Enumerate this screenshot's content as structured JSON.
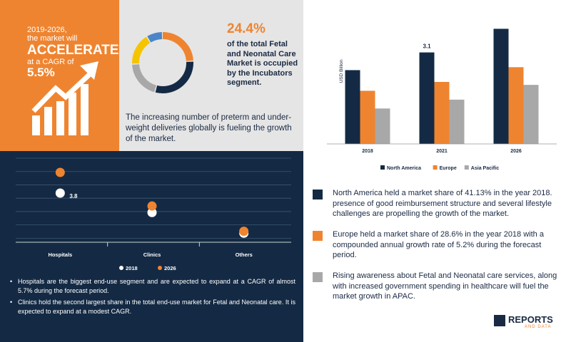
{
  "promo": {
    "years": "2019-2026,",
    "will": "the market will",
    "accelerate": "ACCELERATE",
    "cagr_prefix": "at a CAGR of",
    "cagr": "5.5%"
  },
  "donut": {
    "percent": "24.4%",
    "text": "of the total Fetal and Neonatal Care Market is occupied by the Incubators segment.",
    "segments": [
      {
        "value": 24.4,
        "color": "#ef8430"
      },
      {
        "value": 30,
        "color": "#142a44"
      },
      {
        "value": 20,
        "color": "#a8a8a8"
      },
      {
        "value": 17,
        "color": "#f5c400"
      },
      {
        "value": 8.6,
        "color": "#4a86c8"
      }
    ]
  },
  "growth_text": "The increasing number of preterm and under-weight deliveries globally is fueling the growth of the market.",
  "bullets": [
    "Hospitals are the biggest end-use segment and are expected to expand at a CAGR of almost 5.7% during the forecast period.",
    "Clinics hold the second largest share in the total end-use market for Fetal and Neonatal care. It is expected to expand at a modest CAGR."
  ],
  "regions": [
    {
      "color": "#142a44",
      "text": "North America held a market share of 41.13% in the year 2018. presence of good reimbursement structure and several lifestyle challenges are propelling the growth of the market."
    },
    {
      "color": "#ef8430",
      "text": "Europe held a market share of 28.6% in the year 2018 with a compounded annual growth rate of 5.2% during the forecast period."
    },
    {
      "color": "#a8a8a8",
      "text": "Rising awareness about Fetal and Neonatal care services, along with increased government spending in healthcare will fuel the market growth in APAC."
    }
  ],
  "logo": {
    "name": "REPORTS",
    "sub": "AND DATA"
  },
  "chart_data": [
    {
      "type": "bar",
      "ylabel": "USD Billion",
      "categories": [
        "2018",
        "2021",
        "2026"
      ],
      "series": [
        {
          "name": "North America",
          "color": "#142a44",
          "values": [
            2.5,
            3.1,
            3.9
          ]
        },
        {
          "name": "Europe",
          "color": "#ef8430",
          "values": [
            1.8,
            2.1,
            2.6
          ]
        },
        {
          "name": "Asia Pacific",
          "color": "#a8a8a8",
          "values": [
            1.2,
            1.5,
            2.0
          ]
        }
      ],
      "data_labels": [
        {
          "category": "2021",
          "series": "North America",
          "text": "3.1"
        }
      ],
      "ylim": [
        0,
        4.2
      ],
      "legend": "bottom"
    },
    {
      "type": "scatter",
      "categories": [
        "Hospitals",
        "Clinics",
        "Others"
      ],
      "series": [
        {
          "name": "2018",
          "color": "#ffffff",
          "values": [
            3.8,
            2.3,
            0.7
          ]
        },
        {
          "name": "2026",
          "color": "#ef8430",
          "values": [
            5.4,
            2.8,
            0.85
          ]
        }
      ],
      "data_labels": [
        {
          "category": "Hospitals",
          "series": "2018",
          "text": "3.8"
        }
      ],
      "ylim": [
        0,
        6.5
      ],
      "grid": true,
      "legend": "bottom"
    }
  ]
}
